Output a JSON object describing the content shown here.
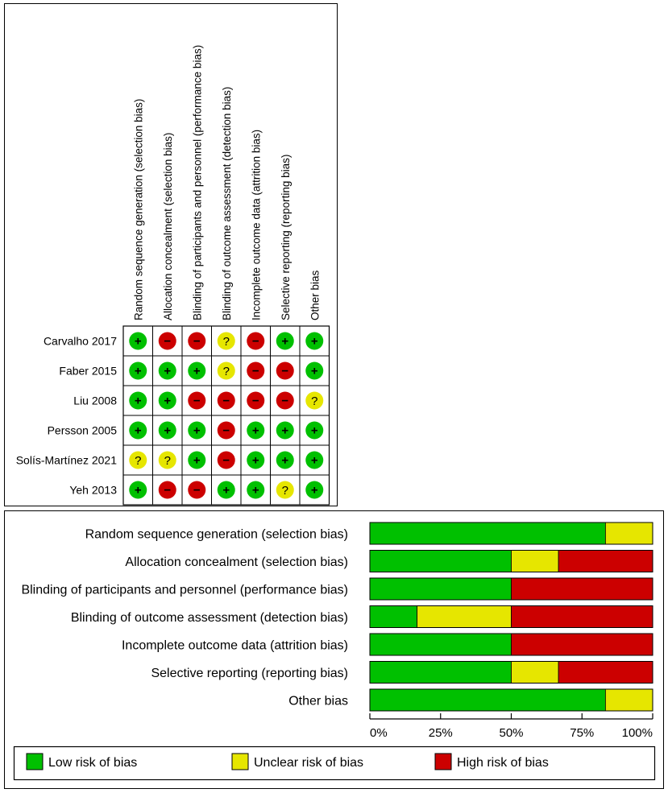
{
  "summary": {
    "domains": [
      "Random sequence generation (selection bias)",
      "Allocation concealment (selection bias)",
      "Blinding of participants and personnel (performance bias)",
      "Blinding of outcome assessment (detection bias)",
      "Incomplete outcome data (attrition bias)",
      "Selective reporting (reporting bias)",
      "Other bias"
    ],
    "studies": [
      {
        "name": "Carvalho 2017",
        "ratings": [
          "low",
          "high",
          "high",
          "unclear",
          "high",
          "low",
          "low"
        ]
      },
      {
        "name": "Faber 2015",
        "ratings": [
          "low",
          "low",
          "low",
          "unclear",
          "high",
          "high",
          "low"
        ]
      },
      {
        "name": "Liu 2008",
        "ratings": [
          "low",
          "low",
          "high",
          "high",
          "high",
          "high",
          "unclear"
        ]
      },
      {
        "name": "Persson 2005",
        "ratings": [
          "low",
          "low",
          "low",
          "high",
          "low",
          "low",
          "low"
        ]
      },
      {
        "name": "Solís-Martínez 2021",
        "ratings": [
          "unclear",
          "unclear",
          "low",
          "high",
          "low",
          "low",
          "low"
        ]
      },
      {
        "name": "Yeh 2013",
        "ratings": [
          "low",
          "high",
          "high",
          "low",
          "low",
          "unclear",
          "low"
        ]
      }
    ],
    "symbols": {
      "low": "+",
      "high": "−",
      "unclear": "?"
    }
  },
  "chart_data": {
    "type": "bar",
    "orientation": "horizontal",
    "stacked": true,
    "categories": [
      "Random sequence generation (selection bias)",
      "Allocation concealment (selection bias)",
      "Blinding of participants and personnel (performance bias)",
      "Blinding of outcome assessment (detection bias)",
      "Incomplete outcome data (attrition bias)",
      "Selective reporting (reporting bias)",
      "Other bias"
    ],
    "series": [
      {
        "name": "Low risk of bias",
        "values": [
          83.3,
          50,
          50,
          16.7,
          50,
          50,
          83.3
        ]
      },
      {
        "name": "Unclear risk of bias",
        "values": [
          16.7,
          16.7,
          0,
          33.3,
          0,
          16.7,
          16.7
        ]
      },
      {
        "name": "High risk of bias",
        "values": [
          0,
          33.3,
          50,
          50,
          50,
          33.3,
          0
        ]
      }
    ],
    "xlim": [
      0,
      100
    ],
    "xticks": [
      "0%",
      "25%",
      "50%",
      "75%",
      "100%"
    ],
    "legend_placement": "bottom"
  },
  "colors": {
    "low": "#00c000",
    "unclear": "#e6e600",
    "high": "#cc0000"
  }
}
